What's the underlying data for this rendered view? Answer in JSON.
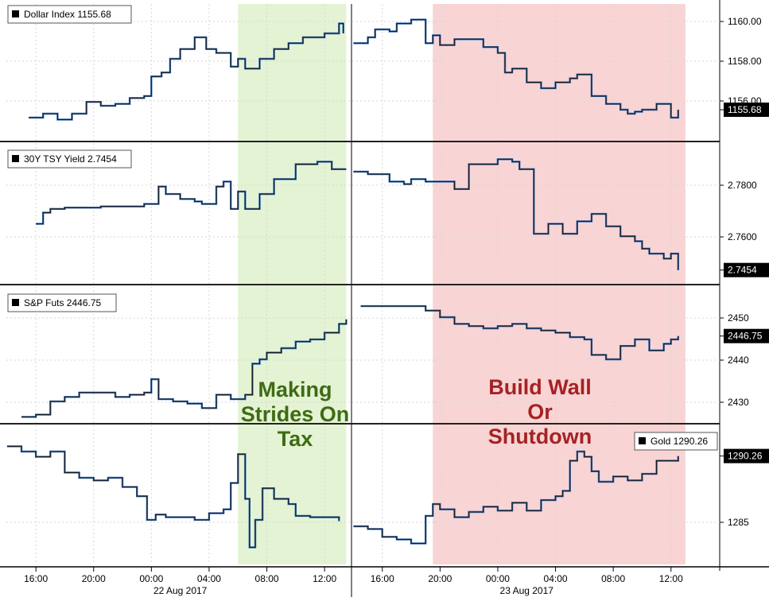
{
  "chart_data": [
    {
      "type": "line",
      "title": "Dollar Index",
      "legend_label": "Dollar Index 1155.68",
      "last_value_label": "1155.68",
      "yticks": [
        "1160.00",
        "1158.00",
        "1156.00"
      ],
      "ylim": [
        1154.2,
        1161.1
      ],
      "series": [
        {
          "x": [
            15.5,
            16.5,
            17.5,
            18.5,
            19.5,
            20.5,
            21.5,
            22.5,
            23.5,
            24.0,
            24.7,
            25.3,
            26.0,
            27.0,
            27.8,
            28.5,
            29.5,
            30.0,
            30.5,
            31.5,
            32.5,
            33.5,
            34.5,
            35.0,
            36.0,
            37.0,
            37.3,
            38.0,
            39.0,
            39.5,
            40.5,
            41.0,
            42.0,
            43.0,
            43.5,
            44.0,
            45.0,
            46.0,
            47.0,
            48.0,
            48.5,
            49.0,
            50.0,
            51.0,
            52.0,
            53.0,
            53.5,
            54.5,
            55.5,
            56.5,
            57.0,
            57.5,
            58.0,
            59.0,
            60.0,
            60.5
          ],
          "values": [
            1155.3,
            1155.5,
            1155.2,
            1155.5,
            1156.1,
            1155.9,
            1156.0,
            1156.3,
            1156.4,
            1157.4,
            1157.6,
            1158.3,
            1158.8,
            1159.4,
            1158.8,
            1158.6,
            1157.9,
            1158.3,
            1157.8,
            1158.3,
            1158.8,
            1159.1,
            1159.4,
            1159.4,
            1159.6,
            1160.1,
            1159.6,
            1159.1,
            1159.4,
            1159.8,
            1159.7,
            1160.1,
            1160.3,
            1159.1,
            1159.5,
            1159.0,
            1159.3,
            1159.3,
            1158.9,
            1158.6,
            1157.6,
            1157.8,
            1157.1,
            1156.8,
            1157.1,
            1157.3,
            1157.5,
            1156.4,
            1156.0,
            1155.7,
            1155.5,
            1155.6,
            1155.7,
            1156.0,
            1155.3,
            1155.7
          ]
        }
      ]
    },
    {
      "type": "line",
      "title": "30Y TSY Yield",
      "legend_label": "30Y TSY Yield 2.7454",
      "last_value_label": "2.7454",
      "yticks": [
        "2.7800",
        "2.7600"
      ],
      "ylim": [
        2.7405,
        2.7965
      ],
      "series": [
        {
          "x": [
            16.0,
            16.5,
            17.0,
            18.0,
            19.0,
            20.5,
            21.5,
            22.5,
            23.5,
            24.5,
            25.0,
            26.0,
            27.0,
            27.5,
            28.5,
            29.0,
            29.5,
            30.0,
            30.5,
            31.5,
            32.5,
            34.0,
            35.5,
            36.5,
            37.5,
            38.0,
            39.0,
            40.5,
            41.5,
            42.0,
            43.0,
            44.0,
            45.0,
            46.0,
            47.0,
            48.0,
            49.0,
            49.5,
            50.5,
            51.5,
            52.5,
            53.5,
            54.5,
            55.5,
            56.5,
            57.5,
            58.0,
            58.5,
            59.5,
            60.0,
            60.5
          ],
          "values": [
            2.764,
            2.7685,
            2.77,
            2.7705,
            2.7705,
            2.771,
            2.771,
            2.771,
            2.772,
            2.779,
            2.776,
            2.774,
            2.773,
            2.772,
            2.779,
            2.781,
            2.77,
            2.777,
            2.77,
            2.776,
            2.782,
            2.788,
            2.789,
            2.786,
            2.786,
            2.785,
            2.784,
            2.781,
            2.78,
            2.782,
            2.781,
            2.781,
            2.778,
            2.788,
            2.788,
            2.79,
            2.789,
            2.786,
            2.76,
            2.764,
            2.76,
            2.765,
            2.768,
            2.763,
            2.759,
            2.757,
            2.754,
            2.752,
            2.75,
            2.752,
            2.7454
          ]
        }
      ]
    },
    {
      "type": "line",
      "title": "S&P Futs",
      "legend_label": "S&P Futs 2446.75",
      "last_value_label": "2446.75",
      "yticks": [
        "2450",
        "2440",
        "2430"
      ],
      "ylim": [
        2427.5,
        2458.0
      ],
      "series": [
        {
          "x": [
            15.0,
            16.0,
            17.0,
            18.0,
            19.0,
            20.0,
            21.5,
            22.5,
            23.5,
            24.0,
            24.5,
            25.5,
            26.5,
            27.5,
            28.5,
            29.5,
            30.5,
            31.0,
            31.5,
            32.0,
            33.0,
            34.0,
            35.0,
            36.0,
            37.0,
            37.5,
            38.5,
            40.0,
            42.0,
            43.0,
            44.0,
            45.0,
            46.0,
            47.0,
            48.0,
            49.0,
            50.0,
            51.0,
            52.0,
            53.0,
            54.0,
            54.5,
            55.5,
            56.5,
            57.5,
            58.5,
            59.5,
            60.0,
            60.5
          ],
          "values": [
            2428.5,
            2429.0,
            2432.0,
            2433.0,
            2434.0,
            2434.0,
            2433.0,
            2433.5,
            2434.0,
            2437.0,
            2432.5,
            2432.0,
            2431.5,
            2430.5,
            2433.5,
            2432.5,
            2433.5,
            2440.5,
            2441.5,
            2443.0,
            2444.0,
            2445.5,
            2446.0,
            2447.5,
            2449.5,
            2450.5,
            2453.5,
            2453.5,
            2453.5,
            2452.5,
            2451.0,
            2449.5,
            2449.0,
            2448.5,
            2449.0,
            2449.5,
            2448.5,
            2448.0,
            2447.5,
            2446.5,
            2446.0,
            2442.5,
            2441.5,
            2444.5,
            2446.0,
            2443.5,
            2445.0,
            2446.0,
            2446.75
          ]
        }
      ]
    },
    {
      "type": "line",
      "title": "Gold",
      "legend_label": "Gold 1290.26",
      "last_value_label": "1290.26",
      "yticks": [
        "1285"
      ],
      "ylim": [
        1282.0,
        1292.6
      ],
      "series": [
        {
          "x": [
            14.0,
            15.0,
            16.0,
            17.0,
            18.0,
            19.0,
            20.0,
            21.0,
            22.0,
            23.0,
            23.7,
            24.3,
            25.0,
            26.0,
            27.0,
            28.0,
            29.0,
            29.5,
            30.0,
            30.5,
            30.8,
            31.2,
            31.7,
            32.5,
            33.5,
            34.0,
            35.0,
            36.0,
            37.0,
            38.0,
            39.0,
            40.0,
            41.0,
            42.0,
            43.0,
            43.5,
            44.0,
            45.0,
            46.0,
            47.0,
            48.0,
            49.0,
            50.0,
            51.0,
            52.0,
            52.5,
            53.0,
            53.5,
            54.0,
            54.5,
            55.0,
            56.0,
            57.0,
            58.0,
            59.0,
            60.0,
            60.5
          ],
          "values": [
            1291.0,
            1290.6,
            1290.2,
            1290.6,
            1289.0,
            1288.6,
            1288.4,
            1288.6,
            1287.9,
            1287.2,
            1285.4,
            1285.8,
            1285.6,
            1285.6,
            1285.4,
            1285.9,
            1286.2,
            1288.2,
            1290.4,
            1287.0,
            1283.3,
            1285.4,
            1287.8,
            1287.0,
            1286.6,
            1285.7,
            1285.6,
            1285.6,
            1285.3,
            1284.9,
            1284.7,
            1284.1,
            1283.9,
            1283.6,
            1285.7,
            1286.6,
            1286.2,
            1285.6,
            1286.0,
            1286.4,
            1286.1,
            1286.7,
            1286.1,
            1286.9,
            1287.2,
            1287.6,
            1289.9,
            1290.6,
            1290.2,
            1289.1,
            1288.3,
            1288.7,
            1288.4,
            1288.9,
            1289.9,
            1289.9,
            1290.26
          ]
        }
      ]
    }
  ],
  "shared_x": {
    "tick_labels": [
      "16:00",
      "20:00",
      "00:00",
      "04:00",
      "08:00",
      "12:00",
      "16:00",
      "20:00",
      "00:00",
      "04:00",
      "08:00",
      "12:00"
    ],
    "tick_hours": [
      16,
      20,
      24,
      28,
      32,
      36,
      40,
      44,
      48,
      52,
      56,
      60
    ],
    "date_labels": [
      "22 Aug 2017",
      "23 Aug 2017"
    ]
  },
  "annotations": [
    {
      "lines": [
        "Making",
        "Strides On",
        "Tax"
      ],
      "color": "#3e6b13"
    },
    {
      "lines": [
        "Build Wall",
        "Or",
        "Shutdown"
      ],
      "color": "#a52224"
    }
  ],
  "highlights": [
    {
      "start": 30.0,
      "end": 37.5,
      "color": "#e3f3d3"
    },
    {
      "start": 43.5,
      "end": 61.0,
      "color": "#f8d4d4"
    }
  ],
  "colors": {
    "line_main": "#1a1a1a",
    "line_shadow": "#1f5fb4",
    "label_bg": "#000000",
    "grid": "#d7d7d7"
  }
}
